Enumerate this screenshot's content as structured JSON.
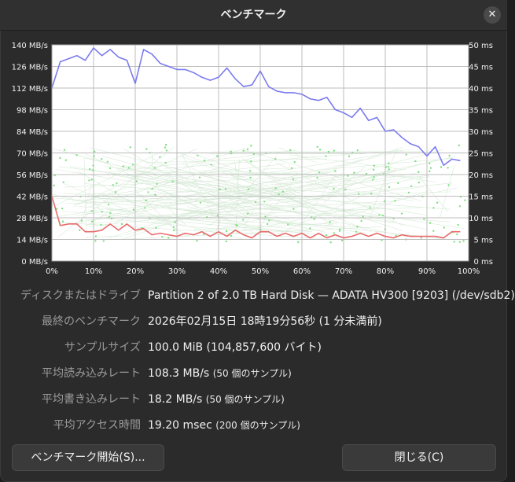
{
  "window": {
    "title": "ベンチマーク",
    "close_glyph": "✕"
  },
  "chart_data": {
    "type": "line",
    "x_ticks": [
      "0%",
      "10%",
      "20%",
      "30%",
      "40%",
      "50%",
      "60%",
      "70%",
      "80%",
      "90%",
      "100%"
    ],
    "y_left_ticks": [
      "0 MB/s",
      "14 MB/s",
      "28 MB/s",
      "42 MB/s",
      "56 MB/s",
      "70 MB/s",
      "84 MB/s",
      "98 MB/s",
      "112 MB/s",
      "126 MB/s",
      "140 MB/s"
    ],
    "y_right_ticks": [
      "0 ms",
      "5 ms",
      "10 ms",
      "15 ms",
      "20 ms",
      "25 ms",
      "30 ms",
      "35 ms",
      "40 ms",
      "45 ms",
      "50 ms"
    ],
    "xlim": [
      0,
      100
    ],
    "ylim_left": [
      0,
      140
    ],
    "ylim_right": [
      0,
      50
    ],
    "grid": true,
    "series": [
      {
        "color": "#7b7bef",
        "x": [
          0,
          2,
          4,
          6,
          8,
          10,
          12,
          14,
          16,
          18,
          20,
          22,
          24,
          26,
          28,
          30,
          32,
          34,
          36,
          38,
          40,
          42,
          44,
          46,
          48,
          50,
          52,
          54,
          56,
          58,
          60,
          62,
          64,
          66,
          68,
          70,
          72,
          74,
          76,
          78,
          80,
          82,
          84,
          86,
          88,
          90,
          92,
          94,
          96,
          98
        ],
        "y": [
          112,
          129,
          131,
          133,
          130,
          138,
          133,
          137,
          132,
          130,
          115,
          137,
          134,
          128,
          126,
          124,
          124,
          122,
          119,
          117,
          119,
          125,
          118,
          113,
          114,
          123,
          113,
          110,
          109,
          109,
          108,
          105,
          104,
          106,
          98,
          96,
          93,
          99,
          91,
          93,
          84,
          85,
          80,
          76,
          74,
          68,
          74,
          62,
          66,
          65
        ]
      },
      {
        "color": "#e96a6a",
        "x": [
          0,
          2,
          4,
          6,
          8,
          10,
          12,
          14,
          16,
          18,
          20,
          22,
          24,
          26,
          28,
          30,
          32,
          34,
          36,
          38,
          40,
          42,
          44,
          46,
          48,
          50,
          52,
          54,
          56,
          58,
          60,
          62,
          64,
          66,
          68,
          70,
          72,
          74,
          76,
          78,
          80,
          82,
          84,
          86,
          88,
          90,
          92,
          94,
          96,
          98
        ],
        "y": [
          42,
          23,
          24,
          24,
          19,
          19,
          20,
          24,
          20,
          24,
          20,
          21,
          17,
          18,
          17,
          16,
          18,
          17,
          19,
          16,
          19,
          16,
          20,
          17,
          15,
          19,
          19,
          16,
          18,
          16,
          18,
          15,
          18,
          15,
          17,
          15,
          16,
          18,
          16,
          18,
          16,
          15,
          17,
          16,
          16,
          16,
          16,
          15,
          19,
          19
        ]
      }
    ]
  },
  "info": {
    "drive_label": "ディスクまたはドライブ",
    "drive_value": "Partition 2 of 2.0 TB Hard Disk — ADATA HV300 [9203] (/dev/sdb2)",
    "last_label": "最終のベンチマーク",
    "last_value": "2026年02月15日 18時19分56秒 (1 分未満前)",
    "sample_size_label": "サンプルサイズ",
    "sample_size_value": "100.0 MiB (104,857,600 バイト)",
    "read_label": "平均読み込みレート",
    "read_value": "108.3 MB/s",
    "read_note": "(50 個のサンプル)",
    "write_label": "平均書き込みレート",
    "write_value": "18.2 MB/s",
    "write_note": "(50 個のサンプル)",
    "access_label": "平均アクセス時間",
    "access_value": "19.20 msec",
    "access_note": "(200 個のサンプル)"
  },
  "buttons": {
    "start": "ベンチマーク開始(S)...",
    "close": "閉じる(C)"
  },
  "colors": {
    "read": "#7b7bef",
    "write": "#e96a6a",
    "access": "#7ee07e",
    "plot_bg": "#ffffff"
  }
}
